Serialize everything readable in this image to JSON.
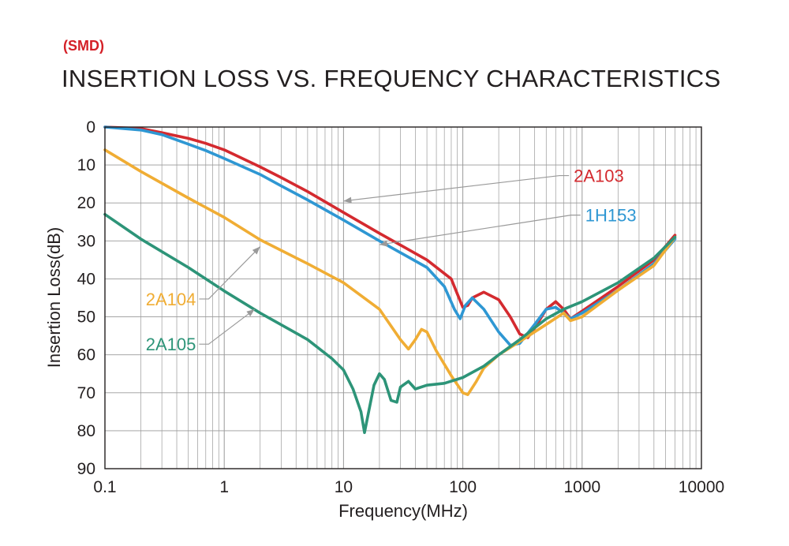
{
  "header": {
    "tag": "(SMD)",
    "title": "INSERTION LOSS VS. FREQUENCY CHARACTERISTICS"
  },
  "colors": {
    "tag": "#d42027",
    "grid": "#9a9a9a",
    "frame": "#231f20"
  },
  "chart_data": {
    "type": "line",
    "title": "INSERTION LOSS VS. FREQUENCY CHARACTERISTICS",
    "xlabel": "Frequency(MHz)",
    "ylabel": "Insertion Loss(dB)",
    "x_scale": "log",
    "xlim": [
      0.1,
      10000
    ],
    "ylim": [
      0,
      90
    ],
    "y_inverted": true,
    "grid": true,
    "x_ticks": [
      "0.1",
      "1",
      "10",
      "100",
      "1000",
      "10000"
    ],
    "x_tick_values": [
      0.1,
      1,
      10,
      100,
      1000,
      10000
    ],
    "y_ticks": [
      "0",
      "10",
      "20",
      "30",
      "40",
      "50",
      "60",
      "70",
      "80",
      "90"
    ],
    "y_tick_values": [
      0,
      10,
      20,
      30,
      40,
      50,
      60,
      70,
      80,
      90
    ],
    "series": [
      {
        "name": "2A103",
        "color": "#d42a2f",
        "label_at": [
          800,
          12.8
        ],
        "arrow_to": [
          10,
          19.5
        ],
        "points": [
          [
            0.1,
            0
          ],
          [
            0.2,
            0.4
          ],
          [
            0.3,
            1.5
          ],
          [
            0.5,
            3
          ],
          [
            0.7,
            4.3
          ],
          [
            1,
            6
          ],
          [
            2,
            10.5
          ],
          [
            3,
            13.3
          ],
          [
            5,
            17
          ],
          [
            10,
            22.5
          ],
          [
            20,
            28
          ],
          [
            50,
            35
          ],
          [
            80,
            40
          ],
          [
            90,
            44
          ],
          [
            100,
            47.5
          ],
          [
            110,
            47
          ],
          [
            120,
            45
          ],
          [
            150,
            43.5
          ],
          [
            200,
            45.5
          ],
          [
            250,
            50
          ],
          [
            300,
            54.5
          ],
          [
            350,
            55.5
          ],
          [
            400,
            53
          ],
          [
            500,
            48
          ],
          [
            600,
            46
          ],
          [
            700,
            48
          ],
          [
            800,
            50.5
          ],
          [
            1000,
            48.5
          ],
          [
            2000,
            42
          ],
          [
            4000,
            35
          ],
          [
            6000,
            28.5
          ]
        ]
      },
      {
        "name": "1H153",
        "color": "#2e97d3",
        "label_at": [
          1000,
          23.2
        ],
        "arrow_to": [
          20,
          31
        ],
        "points": [
          [
            0.1,
            0
          ],
          [
            0.2,
            0.8
          ],
          [
            0.3,
            2
          ],
          [
            0.5,
            4.5
          ],
          [
            0.7,
            6.2
          ],
          [
            1,
            8.3
          ],
          [
            2,
            12.5
          ],
          [
            3,
            15.5
          ],
          [
            5,
            19.2
          ],
          [
            10,
            24.5
          ],
          [
            20,
            30
          ],
          [
            50,
            37
          ],
          [
            70,
            42
          ],
          [
            85,
            48
          ],
          [
            95,
            50.5
          ],
          [
            105,
            47
          ],
          [
            120,
            45
          ],
          [
            150,
            48
          ],
          [
            200,
            54
          ],
          [
            250,
            57.5
          ],
          [
            300,
            57
          ],
          [
            400,
            52
          ],
          [
            500,
            48
          ],
          [
            600,
            47.5
          ],
          [
            700,
            49
          ],
          [
            800,
            50.5
          ],
          [
            1000,
            49
          ],
          [
            2000,
            43
          ],
          [
            4000,
            36
          ],
          [
            6000,
            29.5
          ]
        ]
      },
      {
        "name": "2A104",
        "color": "#f0ad34",
        "label_at": [
          0.22,
          45.3
        ],
        "arrow_to": [
          2,
          31.5
        ],
        "points": [
          [
            0.1,
            6
          ],
          [
            0.2,
            11.7
          ],
          [
            0.5,
            18.7
          ],
          [
            1,
            23.8
          ],
          [
            2,
            29.7
          ],
          [
            5,
            36
          ],
          [
            10,
            41
          ],
          [
            20,
            48
          ],
          [
            30,
            56
          ],
          [
            35,
            58.5
          ],
          [
            40,
            56
          ],
          [
            45,
            53.3
          ],
          [
            50,
            54
          ],
          [
            60,
            59
          ],
          [
            80,
            65.5
          ],
          [
            100,
            70
          ],
          [
            110,
            70.5
          ],
          [
            130,
            67
          ],
          [
            150,
            63.5
          ],
          [
            200,
            60
          ],
          [
            300,
            56.5
          ],
          [
            500,
            52
          ],
          [
            700,
            49
          ],
          [
            800,
            51
          ],
          [
            1000,
            50
          ],
          [
            2000,
            43
          ],
          [
            4000,
            36.5
          ],
          [
            6000,
            29
          ]
        ]
      },
      {
        "name": "2A105",
        "color": "#2d9478",
        "label_at": [
          0.22,
          57.2
        ],
        "arrow_to": [
          1.8,
          48
        ],
        "points": [
          [
            0.1,
            23
          ],
          [
            0.2,
            29.5
          ],
          [
            0.5,
            37
          ],
          [
            1,
            43.2
          ],
          [
            2,
            49
          ],
          [
            5,
            56
          ],
          [
            8,
            61
          ],
          [
            10,
            64
          ],
          [
            12,
            69
          ],
          [
            14,
            75
          ],
          [
            15,
            80.5
          ],
          [
            16,
            76
          ],
          [
            18,
            68
          ],
          [
            20,
            65
          ],
          [
            22,
            66.5
          ],
          [
            25,
            72
          ],
          [
            28,
            72.5
          ],
          [
            30,
            68.5
          ],
          [
            35,
            67
          ],
          [
            40,
            69
          ],
          [
            50,
            68
          ],
          [
            70,
            67.5
          ],
          [
            100,
            66
          ],
          [
            150,
            63
          ],
          [
            200,
            60
          ],
          [
            300,
            56
          ],
          [
            500,
            50.5
          ],
          [
            700,
            48
          ],
          [
            1000,
            46
          ],
          [
            2000,
            41
          ],
          [
            4000,
            34.5
          ],
          [
            6000,
            29
          ]
        ]
      }
    ]
  }
}
